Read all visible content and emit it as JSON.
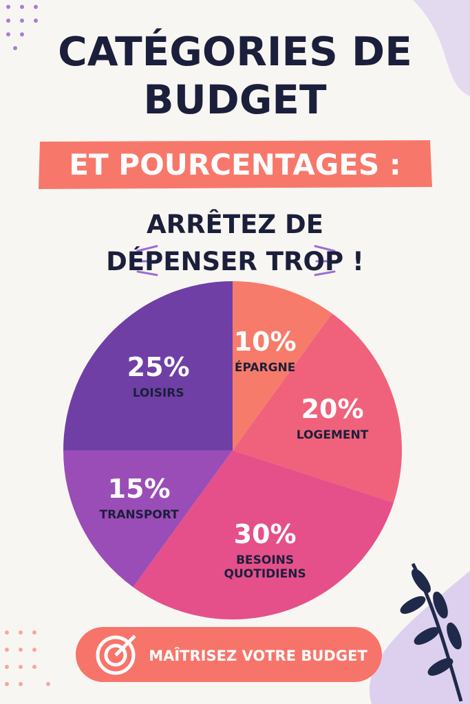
{
  "chart_data": {
    "type": "pie",
    "title": "CATÉGORIES DE BUDGET",
    "subtitle": "ET POURCENTAGES :",
    "annotation": "ARRÊTEZ DE DÉPENSER TROP !",
    "categories": [
      "ÉPARGNE",
      "LOGEMENT",
      "BESOINS QUOTIDIENS",
      "TRANSPORT",
      "LOISIRS"
    ],
    "values": [
      10,
      20,
      30,
      15,
      25
    ],
    "value_labels": [
      "10%",
      "20%",
      "30%",
      "15%",
      "25%"
    ],
    "colors": [
      "#f77b6a",
      "#f0627b",
      "#e5508a",
      "#9a4db6",
      "#6f3fa6"
    ]
  },
  "button": "MAÎTRISEZ VOTRE BUDGET"
}
